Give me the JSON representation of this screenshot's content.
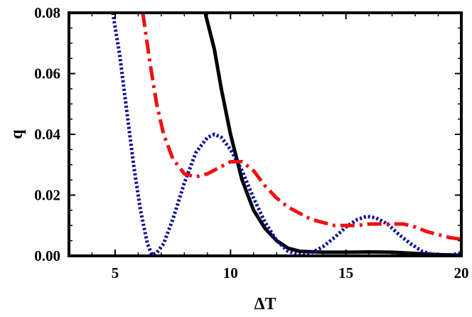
{
  "chart_data": {
    "type": "line",
    "title": "",
    "xlabel": "ΔT",
    "ylabel": "q",
    "xlim": [
      3,
      20
    ],
    "ylim": [
      0,
      0.08
    ],
    "grid": false,
    "legend": "none",
    "x_ticks": [
      5,
      10,
      15,
      20
    ],
    "x_tick_labels": [
      "5",
      "10",
      "15",
      "20"
    ],
    "y_ticks": [
      0,
      0.02,
      0.04,
      0.06,
      0.08
    ],
    "y_tick_labels": [
      "0.00",
      "0.02",
      "0.04",
      "0.06",
      "0.08"
    ],
    "series": [
      {
        "style": "solid",
        "color": "#000000",
        "points": [
          [
            8.9,
            0.08
          ],
          [
            9.3,
            0.068
          ],
          [
            9.6,
            0.055
          ],
          [
            10.0,
            0.04
          ],
          [
            10.5,
            0.025
          ],
          [
            11.0,
            0.015
          ],
          [
            11.5,
            0.009
          ],
          [
            12.0,
            0.005
          ],
          [
            12.5,
            0.0025
          ],
          [
            13.0,
            0.0015
          ],
          [
            14.0,
            0.0012
          ],
          [
            15.0,
            0.0012
          ],
          [
            16.0,
            0.0013
          ],
          [
            17.0,
            0.0012
          ],
          [
            18.0,
            0.0008
          ],
          [
            19.0,
            0.0004
          ],
          [
            20.0,
            0.0002
          ]
        ]
      },
      {
        "style": "dotted",
        "color": "#0b0b96",
        "points": [
          [
            4.9,
            0.08
          ],
          [
            5.2,
            0.066
          ],
          [
            5.5,
            0.048
          ],
          [
            5.8,
            0.03
          ],
          [
            6.1,
            0.015
          ],
          [
            6.4,
            0.004
          ],
          [
            6.6,
            0.0003
          ],
          [
            6.8,
            0.001
          ],
          [
            7.1,
            0.004
          ],
          [
            7.5,
            0.012
          ],
          [
            8.0,
            0.024
          ],
          [
            8.5,
            0.034
          ],
          [
            9.0,
            0.039
          ],
          [
            9.3,
            0.04
          ],
          [
            9.6,
            0.039
          ],
          [
            10.0,
            0.035
          ],
          [
            10.5,
            0.028
          ],
          [
            11.0,
            0.019
          ],
          [
            11.5,
            0.011
          ],
          [
            12.0,
            0.005
          ],
          [
            12.5,
            0.0015
          ],
          [
            13.0,
            0.0005
          ],
          [
            13.5,
            0.001
          ],
          [
            14.0,
            0.003
          ],
          [
            14.5,
            0.006
          ],
          [
            15.0,
            0.0095
          ],
          [
            15.5,
            0.012
          ],
          [
            15.9,
            0.013
          ],
          [
            16.3,
            0.0125
          ],
          [
            16.8,
            0.0105
          ],
          [
            17.3,
            0.007
          ],
          [
            17.8,
            0.004
          ],
          [
            18.3,
            0.0015
          ],
          [
            18.8,
            0.0003
          ],
          [
            19.3,
            0.0002
          ],
          [
            19.7,
            0.0005
          ],
          [
            20.0,
            0.001
          ]
        ]
      },
      {
        "style": "dashdot",
        "color": "#ee1111",
        "points": [
          [
            6.2,
            0.08
          ],
          [
            6.5,
            0.064
          ],
          [
            6.8,
            0.05
          ],
          [
            7.1,
            0.04
          ],
          [
            7.5,
            0.032
          ],
          [
            8.0,
            0.027
          ],
          [
            8.5,
            0.026
          ],
          [
            9.0,
            0.027
          ],
          [
            9.5,
            0.029
          ],
          [
            10.0,
            0.031
          ],
          [
            10.5,
            0.031
          ],
          [
            11.0,
            0.028
          ],
          [
            11.5,
            0.023
          ],
          [
            12.0,
            0.019
          ],
          [
            12.5,
            0.016
          ],
          [
            13.0,
            0.014
          ],
          [
            13.5,
            0.012
          ],
          [
            14.0,
            0.011
          ],
          [
            14.5,
            0.01
          ],
          [
            15.0,
            0.01
          ],
          [
            15.5,
            0.01
          ],
          [
            16.0,
            0.0105
          ],
          [
            16.5,
            0.0105
          ],
          [
            17.0,
            0.0105
          ],
          [
            17.5,
            0.0105
          ],
          [
            18.0,
            0.0095
          ],
          [
            18.5,
            0.008
          ],
          [
            19.0,
            0.007
          ],
          [
            19.5,
            0.006
          ],
          [
            20.0,
            0.0055
          ]
        ]
      }
    ]
  }
}
